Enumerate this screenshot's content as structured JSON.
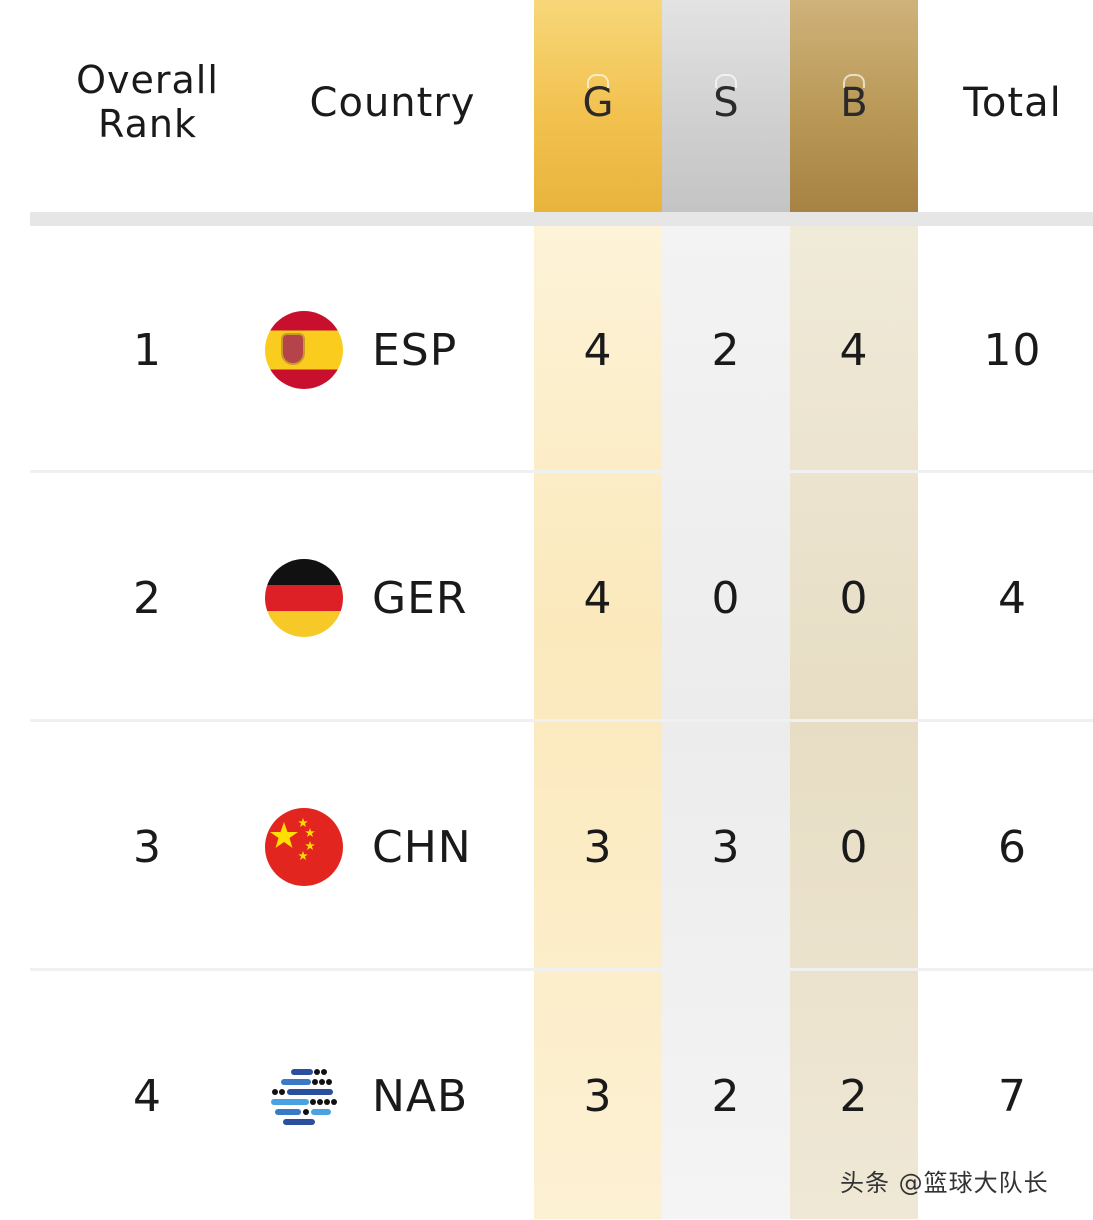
{
  "header": {
    "rank_label": "Overall\nRank",
    "country_label": "Country",
    "gold_label": "G",
    "silver_label": "S",
    "bronze_label": "B",
    "total_label": "Total"
  },
  "rows": [
    {
      "rank": "1",
      "code": "ESP",
      "flag": "spain-flag-icon",
      "gold": "4",
      "silver": "2",
      "bronze": "4",
      "total": "10"
    },
    {
      "rank": "2",
      "code": "GER",
      "flag": "germany-flag-icon",
      "gold": "4",
      "silver": "0",
      "bronze": "0",
      "total": "4"
    },
    {
      "rank": "3",
      "code": "CHN",
      "flag": "china-flag-icon",
      "gold": "3",
      "silver": "3",
      "bronze": "0",
      "total": "6"
    },
    {
      "rank": "4",
      "code": "NAB",
      "flag": "nab-logo-icon",
      "gold": "3",
      "silver": "2",
      "bronze": "2",
      "total": "7"
    }
  ],
  "colors": {
    "gold": "#f2c14e",
    "silver": "#cfcfcf",
    "bronze": "#b99856"
  },
  "watermark": "头条 @篮球大队长"
}
